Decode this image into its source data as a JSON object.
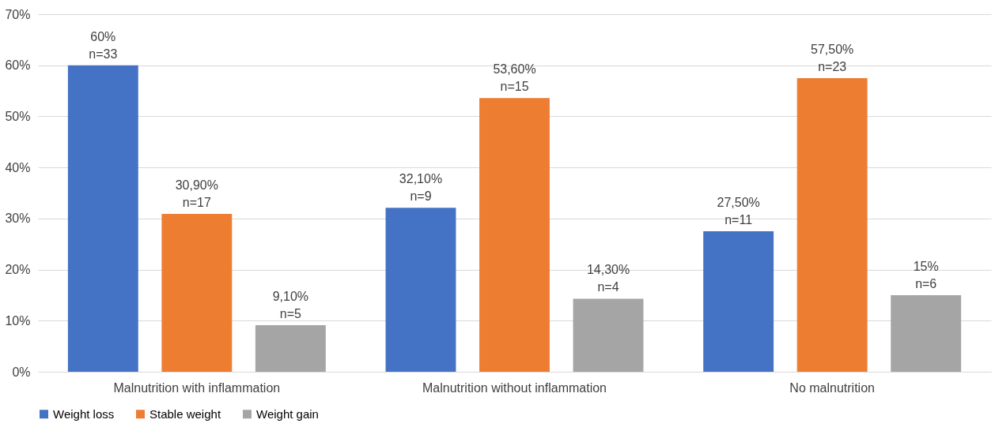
{
  "chart_data": {
    "type": "bar",
    "categories": [
      "Malnutrition with inflammation",
      "Malnutrition without inflammation",
      "No malnutrition"
    ],
    "series": [
      {
        "name": "Weight loss",
        "color": "#4472c4",
        "values": [
          60,
          32.1,
          27.5
        ],
        "value_labels": [
          "60%\nn=33",
          "32,10%\nn=9",
          "27,50%\nn=11"
        ]
      },
      {
        "name": "Stable weight",
        "color": "#ed7d31",
        "values": [
          30.9,
          53.6,
          57.5
        ],
        "value_labels": [
          "30,90%\nn=17",
          "53,60%\nn=15",
          "57,50%\nn=23"
        ]
      },
      {
        "name": "Weight gain",
        "color": "#a5a5a5",
        "values": [
          9.1,
          14.3,
          15
        ],
        "value_labels": [
          "9,10%\nn=5",
          "14,30%\nn=4",
          "15%\nn=6"
        ]
      }
    ],
    "ylim": [
      0,
      70
    ],
    "yticks": [
      {
        "value": 0,
        "label": "0%"
      },
      {
        "value": 10,
        "label": "10%"
      },
      {
        "value": 20,
        "label": "20%"
      },
      {
        "value": 30,
        "label": "30%"
      },
      {
        "value": 40,
        "label": "40%"
      },
      {
        "value": 50,
        "label": "50%"
      },
      {
        "value": 60,
        "label": "60%"
      },
      {
        "value": 70,
        "label": "70%"
      }
    ],
    "grid": "y",
    "legend": "bottom"
  }
}
